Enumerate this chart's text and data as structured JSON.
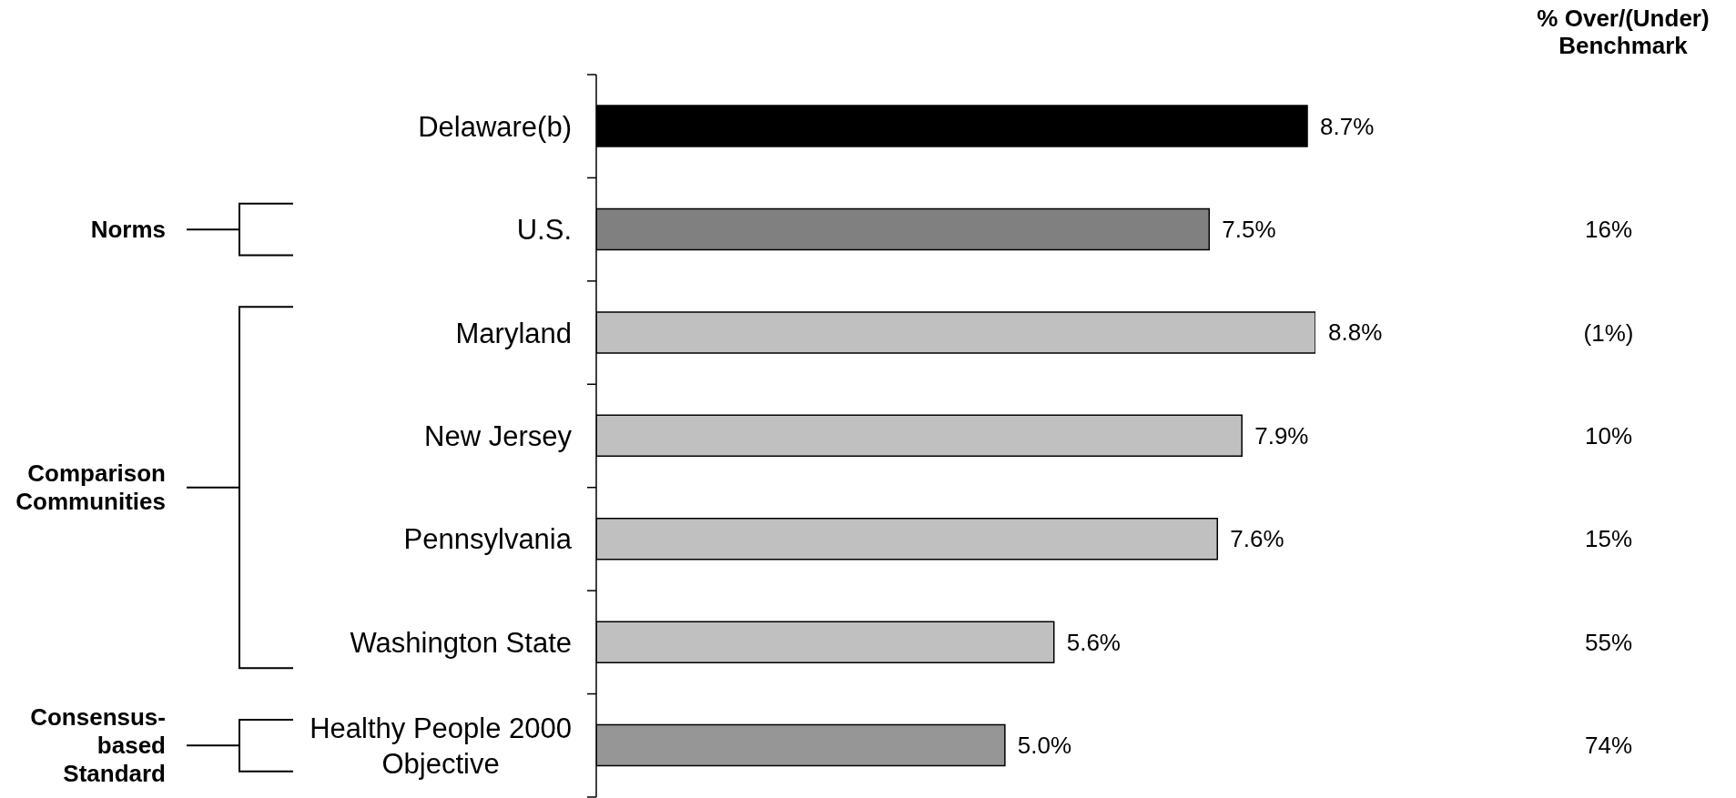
{
  "chart_data": {
    "type": "bar",
    "orientation": "horizontal",
    "categories": [
      "Delaware(b)",
      "U.S.",
      "Maryland",
      "New Jersey",
      "Pennsylvania",
      "Washington State",
      "Healthy People 2000\nObjective"
    ],
    "values": [
      8.7,
      7.5,
      8.8,
      7.9,
      7.6,
      5.6,
      5.0
    ],
    "colors": [
      "#000000",
      "#808080",
      "#c0c0c0",
      "#c0c0c0",
      "#c0c0c0",
      "#c0c0c0",
      "#969696"
    ],
    "value_labels": [
      "8.7%",
      "7.5%",
      "8.8%",
      "7.9%",
      "7.6%",
      "5.6%",
      "5.0%"
    ],
    "tick_labels": "y",
    "y2_categories": [
      null,
      "16%",
      "(1%)",
      "10%",
      "15%",
      "55%",
      "74%"
    ],
    "annotations": [
      "% Over/(Under)\nBenchmark",
      "Norms",
      "Comparison\nCommunities",
      "Consensus-\nbased\nStandard"
    ]
  }
}
